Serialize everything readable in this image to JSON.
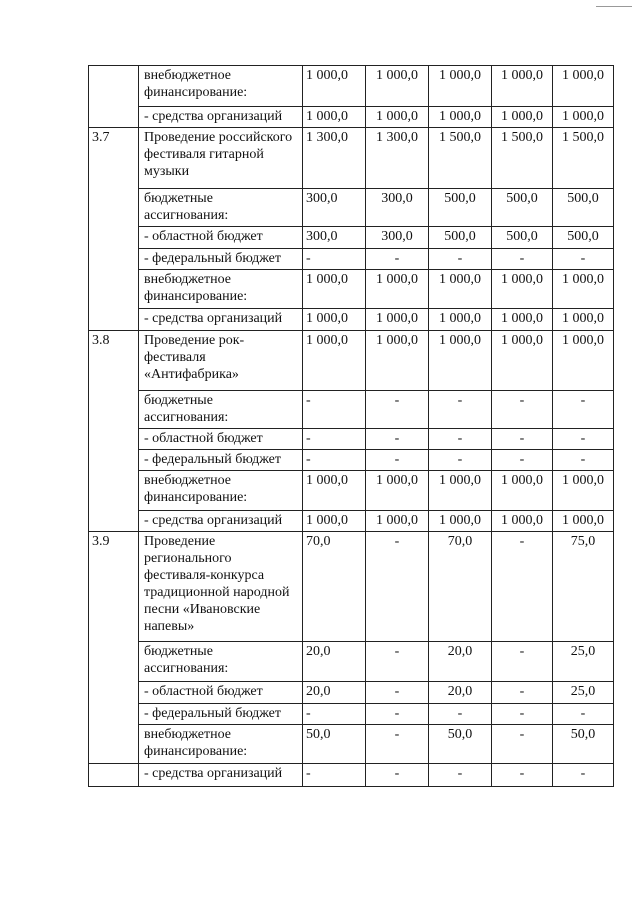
{
  "groups": [
    {
      "num": "",
      "rows": [
        {
          "label": "внебюджетное финансирование:",
          "values": [
            "1 000,0",
            "1 000,0",
            "1 000,0",
            "1 000,0",
            "1 000,0"
          ]
        },
        {
          "label": "- средства организаций",
          "values": [
            "1 000,0",
            "1 000,0",
            "1 000,0",
            "1 000,0",
            "1 000,0"
          ]
        }
      ]
    },
    {
      "num": "3.7",
      "rows": [
        {
          "label": "Проведение российского фестиваля гитарной музыки",
          "values": [
            "1 300,0",
            "1 300,0",
            "1 500,0",
            "1 500,0",
            "1 500,0"
          ]
        },
        {
          "label": "бюджетные ассигнования:",
          "values": [
            "300,0",
            "300,0",
            "500,0",
            "500,0",
            "500,0"
          ]
        },
        {
          "label": "- областной бюджет",
          "values": [
            "300,0",
            "300,0",
            "500,0",
            "500,0",
            "500,0"
          ]
        },
        {
          "label": "- федеральный бюджет",
          "values": [
            "-",
            "-",
            "-",
            "-",
            "-"
          ]
        },
        {
          "label": "внебюджетное финансирование:",
          "values": [
            "1 000,0",
            "1 000,0",
            "1 000,0",
            "1 000,0",
            "1 000,0"
          ]
        },
        {
          "label": "- средства организаций",
          "values": [
            "1 000,0",
            "1 000,0",
            "1 000,0",
            "1 000,0",
            "1 000,0"
          ]
        }
      ]
    },
    {
      "num": "3.8",
      "rows": [
        {
          "label": "Проведение рок-фестиваля «Антифабрика»",
          "values": [
            "1 000,0",
            "1 000,0",
            "1 000,0",
            "1 000,0",
            "1 000,0"
          ]
        },
        {
          "label": "бюджетные ассигнования:",
          "values": [
            "-",
            "-",
            "-",
            "-",
            "-"
          ]
        },
        {
          "label": "- областной бюджет",
          "values": [
            "-",
            "-",
            "-",
            "-",
            "-"
          ]
        },
        {
          "label": "- федеральный бюджет",
          "values": [
            "-",
            "-",
            "-",
            "-",
            "-"
          ]
        },
        {
          "label": "внебюджетное финансирование:",
          "values": [
            "1 000,0",
            "1 000,0",
            "1 000,0",
            "1 000,0",
            "1 000,0"
          ]
        },
        {
          "label": "- средства организаций",
          "values": [
            "1 000,0",
            "1 000,0",
            "1 000,0",
            "1 000,0",
            "1 000,0"
          ]
        }
      ]
    },
    {
      "num": "3.9",
      "rows": [
        {
          "label": "Проведение регионального фестиваля-конкурса традиционной народной песни «Ивановские напевы»",
          "values": [
            "70,0",
            "-",
            "70,0",
            "-",
            "75,0"
          ]
        },
        {
          "label": "бюджетные ассигнования:",
          "values": [
            "20,0",
            "-",
            "20,0",
            "-",
            "25,0"
          ]
        },
        {
          "label": "- областной бюджет",
          "values": [
            "20,0",
            "-",
            "20,0",
            "-",
            "25,0"
          ]
        },
        {
          "label": "- федеральный бюджет",
          "values": [
            "-",
            "-",
            "-",
            "-",
            "-"
          ]
        },
        {
          "label": "внебюджетное финансирование:",
          "values": [
            "50,0",
            "-",
            "50,0",
            "-",
            "50,0"
          ]
        }
      ]
    },
    {
      "num": "",
      "rows": [
        {
          "label": "- средства организаций",
          "values": [
            "-",
            "-",
            "-",
            "-",
            "-"
          ]
        }
      ]
    }
  ]
}
